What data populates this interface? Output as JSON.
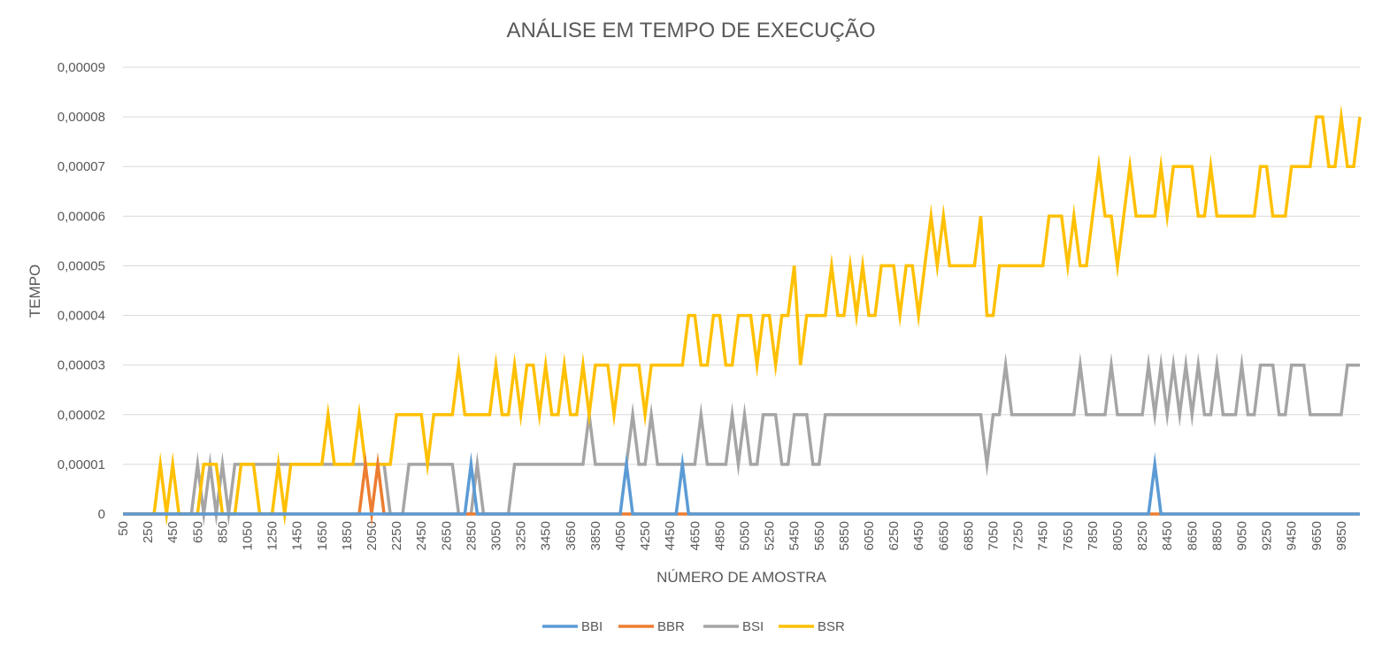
{
  "chart_data": {
    "type": "line",
    "title": "ANÁLISE EM TEMPO DE EXECUÇÃO",
    "xlabel": "NÚMERO DE AMOSTRA",
    "ylabel": "TEMPO",
    "x_start": 50,
    "x_step": 50,
    "x_tick_labels": [
      "50",
      "250",
      "450",
      "650",
      "850",
      "1050",
      "1250",
      "1450",
      "1650",
      "1850",
      "2050",
      "2250",
      "2450",
      "2650",
      "2850",
      "3050",
      "3250",
      "3450",
      "3650",
      "3850",
      "4050",
      "4250",
      "4450",
      "4650",
      "4850",
      "5050",
      "5250",
      "5450",
      "5650",
      "5850",
      "6050",
      "6250",
      "6450",
      "6650",
      "6850",
      "7050",
      "7250",
      "7450",
      "7650",
      "7850",
      "8050",
      "8250",
      "8450",
      "8650",
      "8850",
      "9050",
      "9250",
      "9450",
      "9650",
      "9850"
    ],
    "y_tick_labels": [
      "0",
      "0,00001",
      "0,00002",
      "0,00003",
      "0,00004",
      "0,00005",
      "0,00006",
      "0,00007",
      "0,00008",
      "0,00009"
    ],
    "ylim": [
      0,
      9e-05
    ],
    "grid": true,
    "legend_position": "bottom",
    "series": [
      {
        "name": "BBI",
        "color": "#5B9BD5",
        "spikes": [
          [
            2850,
            1e-05
          ],
          [
            4100,
            1e-05
          ],
          [
            4550,
            1e-05
          ],
          [
            8350,
            1e-05
          ]
        ]
      },
      {
        "name": "BBR",
        "color": "#ED7D31",
        "spikes": [
          [
            2000,
            1e-05
          ],
          [
            2100,
            1e-05
          ]
        ]
      },
      {
        "name": "BSI",
        "color": "#A5A5A5",
        "segments": [
          [
            50,
            0
          ],
          [
            600,
            0
          ],
          [
            650,
            1e-05
          ],
          [
            700,
            0
          ],
          [
            750,
            1e-05
          ],
          [
            800,
            0
          ],
          [
            850,
            1e-05
          ],
          [
            900,
            0
          ],
          [
            950,
            1e-05
          ],
          [
            1950,
            1e-05
          ],
          [
            2050,
            1e-05
          ],
          [
            2100,
            1e-05
          ],
          [
            2150,
            1e-05
          ],
          [
            2200,
            0
          ],
          [
            2300,
            0
          ],
          [
            2350,
            1e-05
          ],
          [
            2700,
            1e-05
          ],
          [
            2750,
            0
          ],
          [
            2850,
            0
          ],
          [
            2900,
            1e-05
          ],
          [
            2950,
            0
          ],
          [
            3150,
            0
          ],
          [
            3200,
            1e-05
          ],
          [
            3750,
            1e-05
          ],
          [
            3800,
            2e-05
          ],
          [
            3850,
            1e-05
          ],
          [
            4100,
            1e-05
          ],
          [
            4150,
            2e-05
          ],
          [
            4200,
            1e-05
          ],
          [
            4250,
            1e-05
          ],
          [
            4300,
            2e-05
          ],
          [
            4350,
            1e-05
          ],
          [
            4650,
            1e-05
          ],
          [
            4700,
            2e-05
          ],
          [
            4750,
            1e-05
          ],
          [
            4900,
            1e-05
          ],
          [
            4950,
            2e-05
          ],
          [
            5000,
            1e-05
          ],
          [
            5050,
            2e-05
          ],
          [
            5100,
            1e-05
          ],
          [
            5150,
            1e-05
          ],
          [
            5200,
            2e-05
          ],
          [
            5300,
            2e-05
          ],
          [
            5350,
            1e-05
          ],
          [
            5400,
            1e-05
          ],
          [
            5450,
            2e-05
          ],
          [
            5550,
            2e-05
          ],
          [
            5600,
            1e-05
          ],
          [
            5650,
            1e-05
          ],
          [
            5700,
            2e-05
          ],
          [
            6950,
            2e-05
          ],
          [
            7000,
            1e-05
          ],
          [
            7050,
            2e-05
          ],
          [
            7100,
            2e-05
          ],
          [
            7150,
            3e-05
          ],
          [
            7200,
            2e-05
          ],
          [
            7700,
            2e-05
          ],
          [
            7750,
            3e-05
          ],
          [
            7800,
            2e-05
          ],
          [
            7950,
            2e-05
          ],
          [
            8000,
            3e-05
          ],
          [
            8050,
            2e-05
          ],
          [
            8250,
            2e-05
          ],
          [
            8300,
            3e-05
          ],
          [
            8350,
            2e-05
          ],
          [
            8400,
            3e-05
          ],
          [
            8450,
            2e-05
          ],
          [
            8500,
            3e-05
          ],
          [
            8550,
            2e-05
          ],
          [
            8600,
            3e-05
          ],
          [
            8650,
            2e-05
          ],
          [
            8700,
            3e-05
          ],
          [
            8750,
            2e-05
          ],
          [
            8800,
            2e-05
          ],
          [
            8850,
            3e-05
          ],
          [
            8900,
            2e-05
          ],
          [
            9000,
            2e-05
          ],
          [
            9050,
            3e-05
          ],
          [
            9100,
            2e-05
          ],
          [
            9150,
            2e-05
          ],
          [
            9200,
            3e-05
          ],
          [
            9300,
            3e-05
          ],
          [
            9350,
            2e-05
          ],
          [
            9400,
            2e-05
          ],
          [
            9450,
            3e-05
          ],
          [
            9550,
            3e-05
          ],
          [
            9600,
            2e-05
          ],
          [
            9850,
            2e-05
          ],
          [
            9900,
            3e-05
          ],
          [
            10000,
            3e-05
          ]
        ]
      },
      {
        "name": "BSR",
        "color": "#FFC000",
        "segments": [
          [
            50,
            0
          ],
          [
            300,
            0
          ],
          [
            350,
            1e-05
          ],
          [
            400,
            0
          ],
          [
            450,
            1e-05
          ],
          [
            500,
            0
          ],
          [
            650,
            0
          ],
          [
            700,
            1e-05
          ],
          [
            800,
            1e-05
          ],
          [
            850,
            0
          ],
          [
            950,
            0
          ],
          [
            1000,
            1e-05
          ],
          [
            1100,
            1e-05
          ],
          [
            1150,
            0
          ],
          [
            1250,
            0
          ],
          [
            1300,
            1e-05
          ],
          [
            1350,
            0
          ],
          [
            1400,
            1e-05
          ],
          [
            1650,
            1e-05
          ],
          [
            1700,
            2e-05
          ],
          [
            1750,
            1e-05
          ],
          [
            1900,
            1e-05
          ],
          [
            1950,
            2e-05
          ],
          [
            2000,
            1e-05
          ],
          [
            2200,
            1e-05
          ],
          [
            2250,
            2e-05
          ],
          [
            2450,
            2e-05
          ],
          [
            2500,
            1e-05
          ],
          [
            2550,
            2e-05
          ],
          [
            2700,
            2e-05
          ],
          [
            2750,
            3e-05
          ],
          [
            2800,
            2e-05
          ],
          [
            3000,
            2e-05
          ],
          [
            3050,
            3e-05
          ],
          [
            3100,
            2e-05
          ],
          [
            3150,
            2e-05
          ],
          [
            3200,
            3e-05
          ],
          [
            3250,
            2e-05
          ],
          [
            3300,
            3e-05
          ],
          [
            3350,
            3e-05
          ],
          [
            3400,
            2e-05
          ],
          [
            3450,
            3e-05
          ],
          [
            3500,
            2e-05
          ],
          [
            3550,
            2e-05
          ],
          [
            3600,
            3e-05
          ],
          [
            3650,
            2e-05
          ],
          [
            3700,
            2e-05
          ],
          [
            3750,
            3e-05
          ],
          [
            3800,
            2e-05
          ],
          [
            3850,
            3e-05
          ],
          [
            3950,
            3e-05
          ],
          [
            4000,
            2e-05
          ],
          [
            4050,
            3e-05
          ],
          [
            4200,
            3e-05
          ],
          [
            4250,
            2e-05
          ],
          [
            4300,
            3e-05
          ],
          [
            4550,
            3e-05
          ],
          [
            4600,
            4e-05
          ],
          [
            4650,
            4e-05
          ],
          [
            4700,
            3e-05
          ],
          [
            4750,
            3e-05
          ],
          [
            4800,
            4e-05
          ],
          [
            4850,
            4e-05
          ],
          [
            4900,
            3e-05
          ],
          [
            4950,
            3e-05
          ],
          [
            5000,
            4e-05
          ],
          [
            5100,
            4e-05
          ],
          [
            5150,
            3e-05
          ],
          [
            5200,
            4e-05
          ],
          [
            5250,
            4e-05
          ],
          [
            5300,
            3e-05
          ],
          [
            5350,
            4e-05
          ],
          [
            5400,
            4e-05
          ],
          [
            5450,
            5e-05
          ],
          [
            5500,
            3e-05
          ],
          [
            5550,
            4e-05
          ],
          [
            5700,
            4e-05
          ],
          [
            5750,
            5e-05
          ],
          [
            5800,
            4e-05
          ],
          [
            5850,
            4e-05
          ],
          [
            5900,
            5e-05
          ],
          [
            5950,
            4e-05
          ],
          [
            6000,
            5e-05
          ],
          [
            6050,
            4e-05
          ],
          [
            6100,
            4e-05
          ],
          [
            6150,
            5e-05
          ],
          [
            6250,
            5e-05
          ],
          [
            6300,
            4e-05
          ],
          [
            6350,
            5e-05
          ],
          [
            6400,
            5e-05
          ],
          [
            6450,
            4e-05
          ],
          [
            6500,
            5e-05
          ],
          [
            6550,
            6e-05
          ],
          [
            6600,
            5e-05
          ],
          [
            6650,
            6e-05
          ],
          [
            6700,
            5e-05
          ],
          [
            6900,
            5e-05
          ],
          [
            6950,
            6e-05
          ],
          [
            7000,
            4e-05
          ],
          [
            7050,
            4e-05
          ],
          [
            7100,
            5e-05
          ],
          [
            7450,
            5e-05
          ],
          [
            7500,
            6e-05
          ],
          [
            7600,
            6e-05
          ],
          [
            7650,
            5e-05
          ],
          [
            7700,
            6e-05
          ],
          [
            7750,
            5e-05
          ],
          [
            7800,
            5e-05
          ],
          [
            7900,
            7e-05
          ],
          [
            7950,
            6e-05
          ],
          [
            8000,
            6e-05
          ],
          [
            8050,
            5e-05
          ],
          [
            8150,
            7e-05
          ],
          [
            8200,
            6e-05
          ],
          [
            8350,
            6e-05
          ],
          [
            8400,
            7e-05
          ],
          [
            8450,
            6e-05
          ],
          [
            8500,
            7e-05
          ],
          [
            8650,
            7e-05
          ],
          [
            8700,
            6e-05
          ],
          [
            8750,
            6e-05
          ],
          [
            8800,
            7e-05
          ],
          [
            8850,
            6e-05
          ],
          [
            9150,
            6e-05
          ],
          [
            9200,
            7e-05
          ],
          [
            9250,
            7e-05
          ],
          [
            9300,
            6e-05
          ],
          [
            9400,
            6e-05
          ],
          [
            9450,
            7e-05
          ],
          [
            9600,
            7e-05
          ],
          [
            9650,
            8e-05
          ],
          [
            9700,
            8e-05
          ],
          [
            9750,
            7e-05
          ],
          [
            9800,
            7e-05
          ],
          [
            9850,
            8e-05
          ],
          [
            9900,
            7e-05
          ],
          [
            9950,
            7e-05
          ],
          [
            10000,
            8e-05
          ]
        ]
      }
    ]
  }
}
